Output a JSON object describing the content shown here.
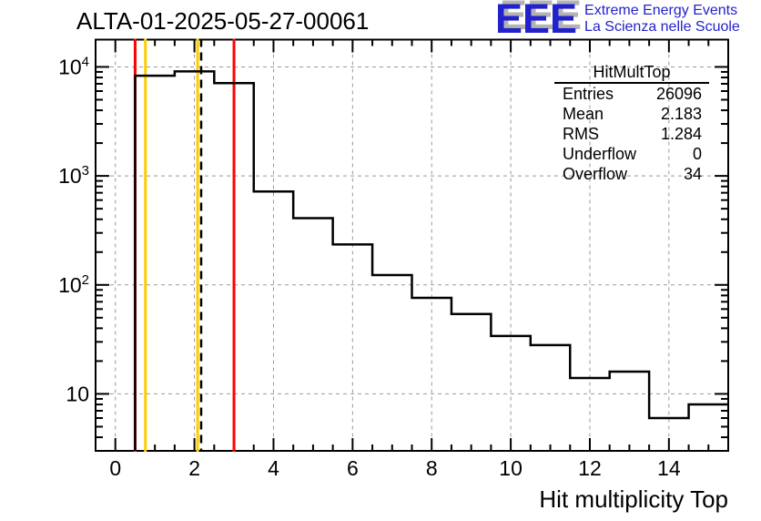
{
  "header": {
    "logo": {
      "acronym": "EEE",
      "line1": "Extreme Energy Events",
      "line2": "La Scienza nelle Scuole",
      "color": "#2222cc"
    }
  },
  "stats_box": {
    "title": "HitMultTop",
    "rows": [
      {
        "label": "Entries",
        "value": "26096"
      },
      {
        "label": "Mean",
        "value": "2.183"
      },
      {
        "label": "RMS",
        "value": "1.284"
      },
      {
        "label": "Underflow",
        "value": "0"
      },
      {
        "label": "Overflow",
        "value": "34"
      }
    ]
  },
  "chart_data": {
    "type": "bar",
    "title": "ALTA-01-2025-05-27-00061",
    "xlabel": "Hit multiplicity Top",
    "ylabel": "",
    "yscale": "log",
    "xlim": [
      -0.5,
      15.5
    ],
    "ylim": [
      3,
      17800
    ],
    "grid": true,
    "x_centers": [
      1,
      2,
      3,
      4,
      5,
      6,
      7,
      8,
      9,
      10,
      11,
      12,
      13,
      14,
      15
    ],
    "values": [
      8300,
      9100,
      7100,
      720,
      410,
      235,
      123,
      76,
      54,
      34,
      28,
      14,
      16,
      6,
      8
    ],
    "x_major_ticks": [
      0,
      2,
      4,
      6,
      8,
      10,
      12,
      14
    ],
    "y_decades": [
      1,
      2,
      3,
      4
    ],
    "line_color": "#000000",
    "grid_color": "#999999",
    "marker_lines": [
      {
        "name": "red-line-low",
        "x": 0.5,
        "color": "#ff0000",
        "width": 3
      },
      {
        "name": "yellow-line-low",
        "x": 0.76,
        "color": "#ffcc00",
        "width": 3
      },
      {
        "name": "yellow-line-mean",
        "x": 2.08,
        "color": "#ffcc00",
        "width": 3
      },
      {
        "name": "mean-dashed-line",
        "x": 2.17,
        "color": "#000000",
        "width": 2.5,
        "dash": "9,6"
      },
      {
        "name": "red-line-high",
        "x": 3.0,
        "color": "#ff0000",
        "width": 3
      }
    ]
  }
}
